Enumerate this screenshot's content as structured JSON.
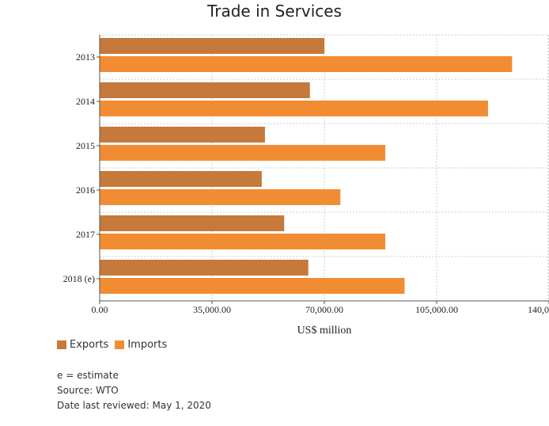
{
  "chart_data": {
    "type": "bar",
    "orientation": "horizontal",
    "title": "Trade in Services",
    "xlabel": "US$ million",
    "ylabel": "",
    "categories": [
      "2013",
      "2014",
      "2015",
      "2016",
      "2017",
      "2018 (e)"
    ],
    "series": [
      {
        "name": "Exports",
        "color": "#c5793a",
        "values": [
          70000,
          65500,
          51500,
          50500,
          57500,
          65000
        ]
      },
      {
        "name": "Imports",
        "color": "#f28c33",
        "values": [
          128500,
          121000,
          89000,
          75000,
          89000,
          95000
        ]
      }
    ],
    "xlim": [
      0,
      140000
    ],
    "xticks": [
      0,
      35000,
      70000,
      105000,
      140000
    ],
    "xtick_labels": [
      "0.00",
      "35,000.00",
      "70,000.00",
      "105,000.00",
      "140,000.00"
    ],
    "grid": true,
    "legend_position": "bottom-left"
  },
  "notes": {
    "estimate": "e = estimate",
    "source": "Source: WTO",
    "reviewed": "Date last reviewed: May 1, 2020"
  }
}
